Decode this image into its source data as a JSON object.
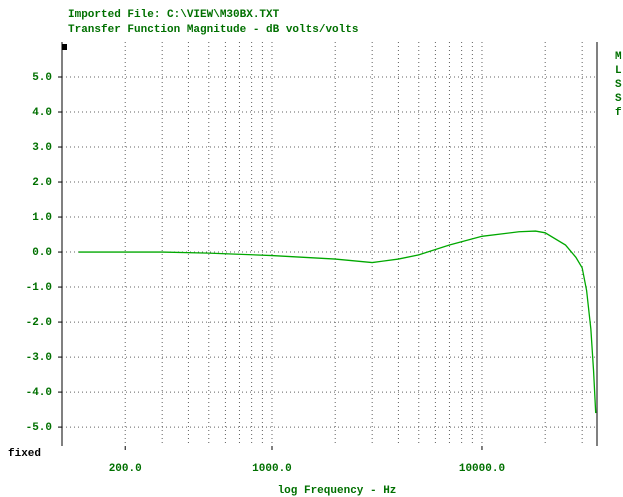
{
  "chart_data": {
    "type": "line",
    "title": "Imported File: C:\\VIEW\\M30BX.TXT",
    "subtitle": "Transfer Function Magnitude - dB volts/volts",
    "x_label": "log Frequency - Hz",
    "scale_mode": "fixed",
    "side_labels": [
      "M",
      "L",
      "S",
      "S",
      "f"
    ],
    "x_log": true,
    "xlim": [
      100,
      35300
    ],
    "ylim": [
      -5.54,
      6
    ],
    "xticks": [
      {
        "value": 200,
        "label": "200.0"
      },
      {
        "value": 1000,
        "label": "1000.0"
      },
      {
        "value": 10000,
        "label": "10000.0"
      }
    ],
    "xgrid": [
      200,
      300,
      400,
      500,
      600,
      700,
      800,
      900,
      1000,
      2000,
      3000,
      4000,
      5000,
      6000,
      7000,
      8000,
      9000,
      10000,
      20000,
      30000
    ],
    "yticks": [
      {
        "value": 5,
        "label": "5.0"
      },
      {
        "value": 4,
        "label": "4.0"
      },
      {
        "value": 3,
        "label": "3.0"
      },
      {
        "value": 2,
        "label": "2.0"
      },
      {
        "value": 1,
        "label": "1.0"
      },
      {
        "value": 0,
        "label": "0.0"
      },
      {
        "value": -1,
        "label": "-1.0"
      },
      {
        "value": -2,
        "label": "-2.0"
      },
      {
        "value": -3,
        "label": "-3.0"
      },
      {
        "value": -4,
        "label": "-4.0"
      },
      {
        "value": -5,
        "label": "-5.0"
      }
    ],
    "grid": true,
    "x": [
      120,
      300,
      500,
      1000,
      2000,
      3000,
      4000,
      5000,
      7000,
      10000,
      15000,
      18000,
      20000,
      25000,
      28000,
      30000,
      31500,
      33000,
      34000,
      34800
    ],
    "series": [
      {
        "name": "Magnitude",
        "color": "#00a800",
        "values": [
          0,
          0,
          -0.03,
          -0.1,
          -0.2,
          -0.3,
          -0.2,
          -0.08,
          0.2,
          0.45,
          0.58,
          0.6,
          0.55,
          0.2,
          -0.15,
          -0.45,
          -1.1,
          -2.2,
          -3.4,
          -4.6
        ]
      }
    ]
  }
}
